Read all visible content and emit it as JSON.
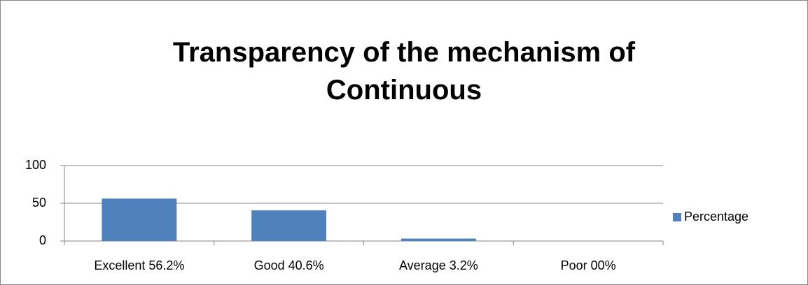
{
  "chart_data": {
    "type": "bar",
    "title": "Transparency of the mechanism of Continuous",
    "categories": [
      "Excellent 56.2%",
      "Good 40.6%",
      "Average 3.2%",
      "Poor 00%"
    ],
    "series": [
      {
        "name": "Percentage",
        "color": "#4f81bd",
        "values": [
          56.2,
          40.6,
          3.2,
          0
        ]
      }
    ],
    "ylim": [
      0,
      100
    ],
    "yticks": [
      0,
      50,
      100
    ],
    "grid": true,
    "legend": "right"
  }
}
